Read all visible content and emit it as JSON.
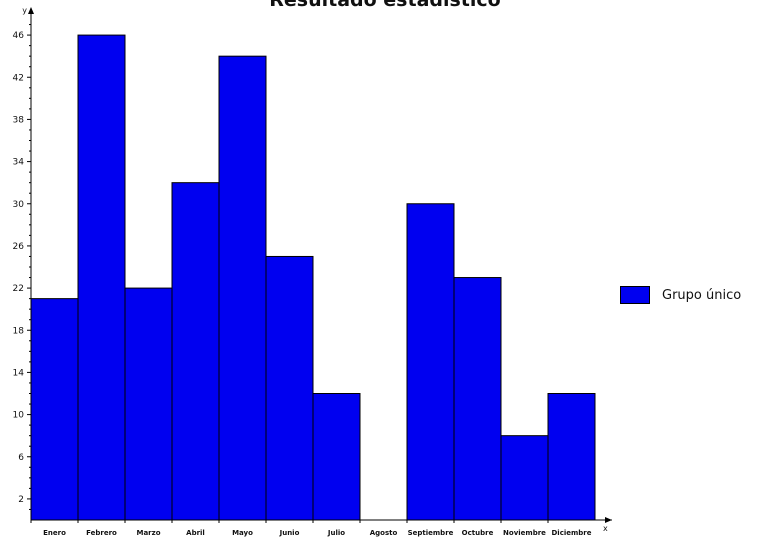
{
  "chart_data": {
    "type": "bar",
    "title": "Resultado estadístico",
    "xlabel": "x",
    "ylabel": "y",
    "categories": [
      "Enero",
      "Febrero",
      "Marzo",
      "Abril",
      "Mayo",
      "Junio",
      "Julio",
      "Agosto",
      "Septiembre",
      "Octubre",
      "Noviembre",
      "Diciembre"
    ],
    "series": [
      {
        "name": "Grupo único",
        "color": "#0000f0",
        "values": [
          21,
          46,
          22,
          32,
          44,
          25,
          12,
          0,
          30,
          23,
          8,
          12
        ]
      }
    ],
    "ylim": [
      0,
      48
    ],
    "yticks": [
      2,
      6,
      10,
      14,
      18,
      22,
      26,
      30,
      34,
      38,
      42,
      46
    ],
    "grid": false,
    "legend_position": "right"
  }
}
